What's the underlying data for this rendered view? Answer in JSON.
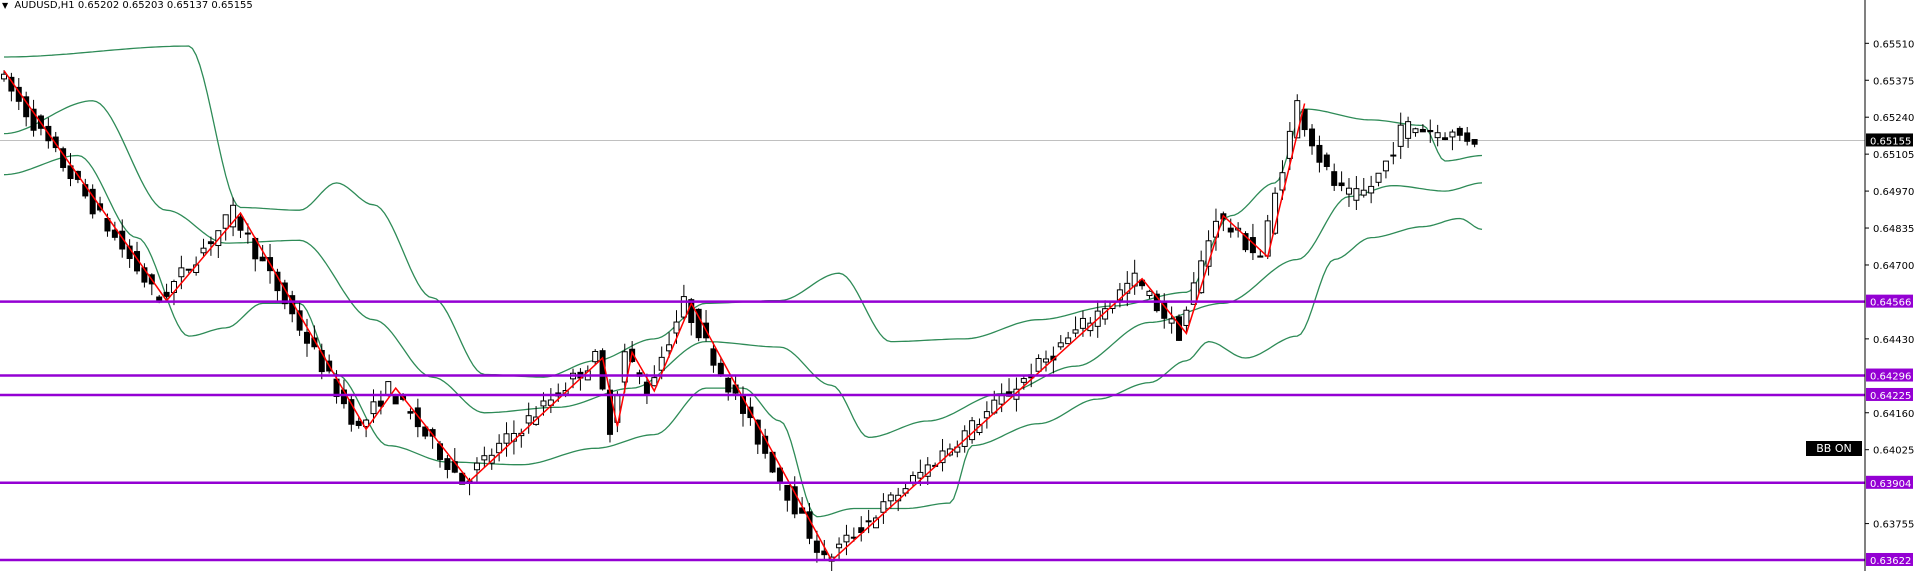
{
  "header": {
    "symbol": "AUDUSD,H1",
    "ohlc": "0.65202 0.65203 0.65137 0.65155"
  },
  "badge": {
    "label": "BB ON"
  },
  "colors": {
    "candle": "#000000",
    "band": "#2e8b57",
    "zigzag": "#ff0000",
    "level": "#9400d3",
    "current_price_line": "#c0c0c0"
  },
  "chart_data": {
    "type": "candlestick",
    "symbol": "AUDUSD",
    "timeframe": "H1",
    "ylim": [
      0.636,
      0.6565
    ],
    "y_ticks": [
      "0.65510",
      "0.65375",
      "0.65240",
      "0.65105",
      "0.64970",
      "0.64835",
      "0.64700",
      "0.64430",
      "0.64160",
      "0.64025",
      "0.63755"
    ],
    "current_price": 0.65155,
    "current_price_label": "0.65155",
    "levels": [
      {
        "value": 0.64566,
        "label": "0.64566"
      },
      {
        "value": 0.64296,
        "label": "0.64296"
      },
      {
        "value": 0.64225,
        "label": "0.64225"
      },
      {
        "value": 0.63904,
        "label": "0.63904"
      },
      {
        "value": 0.63622,
        "label": "0.63622"
      }
    ],
    "bar_count": 200,
    "zigzag": [
      [
        0,
        0.6541
      ],
      [
        22,
        0.6457
      ],
      [
        32,
        0.6489
      ],
      [
        49,
        0.641
      ],
      [
        53,
        0.6425
      ],
      [
        63,
        0.6391
      ],
      [
        81,
        0.6436
      ],
      [
        83,
        0.6411
      ],
      [
        85,
        0.6438
      ],
      [
        88,
        0.6424
      ],
      [
        93,
        0.6456
      ],
      [
        112,
        0.6362
      ],
      [
        154,
        0.6465
      ],
      [
        160,
        0.6445
      ],
      [
        165,
        0.6488
      ],
      [
        171,
        0.6473
      ],
      [
        176,
        0.6529
      ]
    ],
    "upper_band": [
      [
        0,
        0.6546
      ],
      [
        25,
        0.655
      ],
      [
        32,
        0.6491
      ],
      [
        40,
        0.649
      ],
      [
        45,
        0.65
      ],
      [
        50,
        0.6492
      ],
      [
        58,
        0.6458
      ],
      [
        65,
        0.643
      ],
      [
        73,
        0.6429
      ],
      [
        80,
        0.6435
      ],
      [
        88,
        0.6443
      ],
      [
        95,
        0.6456
      ],
      [
        105,
        0.6457
      ],
      [
        113,
        0.6467
      ],
      [
        120,
        0.6442
      ],
      [
        130,
        0.6443
      ],
      [
        140,
        0.645
      ],
      [
        150,
        0.6455
      ],
      [
        160,
        0.646
      ],
      [
        166,
        0.6488
      ],
      [
        172,
        0.65
      ],
      [
        176,
        0.6527
      ],
      [
        185,
        0.6523
      ],
      [
        192,
        0.6521
      ],
      [
        195,
        0.6508
      ],
      [
        200,
        0.651
      ]
    ],
    "middle_band": [
      [
        0,
        0.6518
      ],
      [
        12,
        0.653
      ],
      [
        22,
        0.649
      ],
      [
        30,
        0.6478
      ],
      [
        40,
        0.6479
      ],
      [
        50,
        0.645
      ],
      [
        58,
        0.6429
      ],
      [
        65,
        0.6416
      ],
      [
        75,
        0.6418
      ],
      [
        85,
        0.6425
      ],
      [
        95,
        0.6442
      ],
      [
        105,
        0.644
      ],
      [
        112,
        0.6426
      ],
      [
        117,
        0.6407
      ],
      [
        125,
        0.6413
      ],
      [
        135,
        0.6423
      ],
      [
        145,
        0.6433
      ],
      [
        155,
        0.6449
      ],
      [
        165,
        0.6456
      ],
      [
        175,
        0.6472
      ],
      [
        182,
        0.6495
      ],
      [
        188,
        0.6499
      ],
      [
        195,
        0.6497
      ],
      [
        200,
        0.65
      ]
    ],
    "lower_band": [
      [
        0,
        0.6503
      ],
      [
        10,
        0.651
      ],
      [
        18,
        0.648
      ],
      [
        25,
        0.6444
      ],
      [
        30,
        0.6447
      ],
      [
        35,
        0.6456
      ],
      [
        40,
        0.6456
      ],
      [
        45,
        0.643
      ],
      [
        52,
        0.6404
      ],
      [
        60,
        0.6398
      ],
      [
        70,
        0.6397
      ],
      [
        80,
        0.6403
      ],
      [
        88,
        0.6408
      ],
      [
        95,
        0.6425
      ],
      [
        100,
        0.6425
      ],
      [
        105,
        0.6413
      ],
      [
        110,
        0.6378
      ],
      [
        115,
        0.6381
      ],
      [
        122,
        0.6381
      ],
      [
        128,
        0.6383
      ],
      [
        131,
        0.6404
      ],
      [
        140,
        0.6412
      ],
      [
        148,
        0.6421
      ],
      [
        155,
        0.6427
      ],
      [
        160,
        0.6435
      ],
      [
        163,
        0.6442
      ],
      [
        168,
        0.6436
      ],
      [
        175,
        0.6444
      ],
      [
        180,
        0.6472
      ],
      [
        185,
        0.648
      ],
      [
        192,
        0.6484
      ],
      [
        197,
        0.6487
      ],
      [
        200,
        0.6483
      ]
    ]
  }
}
